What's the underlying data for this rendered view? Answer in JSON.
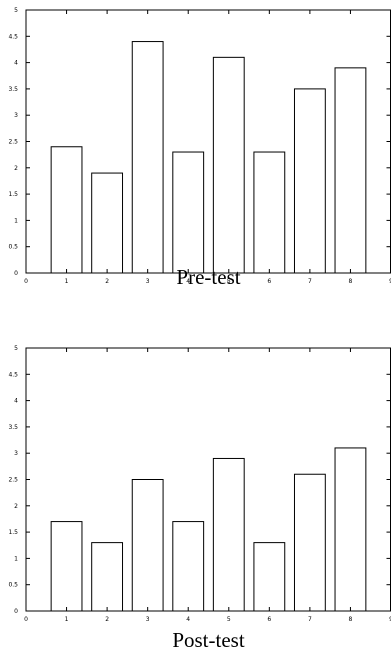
{
  "chart_data": [
    {
      "type": "bar",
      "title": "Pre-test",
      "xlabel": "",
      "ylabel": "",
      "x": [
        1,
        2,
        3,
        4,
        5,
        6,
        7,
        8
      ],
      "values": [
        2.4,
        1.9,
        4.4,
        2.3,
        4.1,
        2.3,
        3.5,
        3.9
      ],
      "xlim": [
        0,
        9
      ],
      "ylim": [
        0,
        5
      ],
      "xticks": [
        "0",
        "1",
        "2",
        "3",
        "4",
        "5",
        "6",
        "7",
        "8",
        "9"
      ],
      "yticks": [
        "0",
        "0.5",
        "1",
        "1.5",
        "2",
        "2.5",
        "3",
        "3.5",
        "4",
        "4.5",
        "5"
      ],
      "grid": false,
      "bar_color": "#ffffff",
      "edge_color": "#000000"
    },
    {
      "type": "bar",
      "title": "Post-test",
      "xlabel": "",
      "ylabel": "",
      "x": [
        1,
        2,
        3,
        4,
        5,
        6,
        7,
        8
      ],
      "values": [
        1.7,
        1.3,
        2.5,
        1.7,
        2.9,
        1.3,
        2.6,
        3.1
      ],
      "xlim": [
        0,
        9
      ],
      "ylim": [
        0,
        5
      ],
      "xticks": [
        "0",
        "1",
        "2",
        "3",
        "4",
        "5",
        "6",
        "7",
        "8",
        "9"
      ],
      "yticks": [
        "0",
        "0.5",
        "1",
        "1.5",
        "2",
        "2.5",
        "3",
        "3.5",
        "4",
        "4.5",
        "5"
      ],
      "grid": false,
      "bar_color": "#ffffff",
      "edge_color": "#000000"
    }
  ]
}
